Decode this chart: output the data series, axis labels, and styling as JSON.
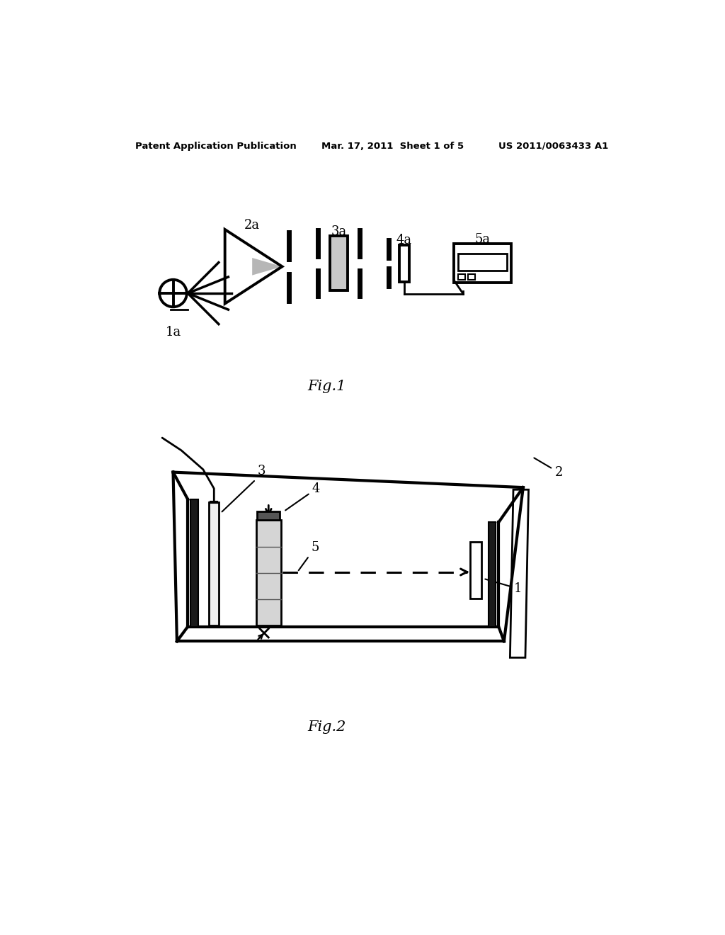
{
  "bg_color": "#ffffff",
  "header_left": "Patent Application Publication",
  "header_mid": "Mar. 17, 2011  Sheet 1 of 5",
  "header_right": "US 2011/0063433 A1",
  "fig1_label": "Fig.1",
  "fig2_label": "Fig.2",
  "labels_fig1": [
    "1a",
    "2a",
    "3a",
    "4a",
    "5a"
  ],
  "labels_fig2": [
    "1",
    "2",
    "3",
    "4",
    "5"
  ]
}
